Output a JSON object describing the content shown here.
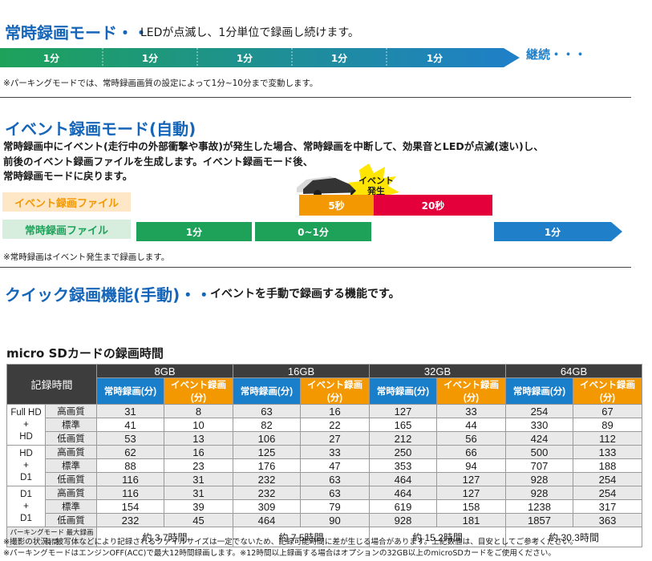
{
  "normal_mode": {
    "title": "常時録画モード・・",
    "desc": "LEDが点滅し、1分単位で録画し続けます。",
    "segments": [
      "1分",
      "1分",
      "1分",
      "1分",
      "1分"
    ],
    "continue_label": "継続・・・",
    "note": "※パーキングモードでは、常時録画画質の設定によって1分~10分まで変動します。"
  },
  "event_mode": {
    "title": "イベント録画モード(自動)",
    "desc_line1": "常時録画中にイベント(走行中の外部衝撃や事故)が発生した場合、常時録画を中断して、効果音とLEDが点滅(速い)し、",
    "desc_line2": "前後のイベント録画ファイルを生成します。イベント録画モード後、",
    "desc_line3": "常時録画モードに戻ります。",
    "event_file_label": "イベント録画ファイル",
    "normal_file_label": "常時録画ファイル",
    "event_burst": "イベント発生",
    "before_seg": "5秒",
    "after_seg": "20秒",
    "normal_segs": [
      "1分",
      "0~1分",
      "1分"
    ],
    "note": "※常時録画はイベント発生まで録画します。"
  },
  "quick_mode": {
    "title": "クイック録画機能(手動)・・",
    "desc": "イベントを手動で録画する機能です。"
  },
  "table": {
    "title": "micro SDカードの録画時間",
    "header_label": "記録時間",
    "capacities": [
      "8GB",
      "16GB",
      "32GB",
      "64GB"
    ],
    "col_normal": "常時録画(分)",
    "col_event": "イベント録画(分)",
    "groups": [
      {
        "name": [
          "Full HD",
          "+",
          "HD"
        ],
        "rows": [
          {
            "quality": "高画質",
            "values": [
              "31",
              "8",
              "63",
              "16",
              "127",
              "33",
              "254",
              "67"
            ]
          },
          {
            "quality": "標準",
            "values": [
              "41",
              "10",
              "82",
              "22",
              "165",
              "44",
              "330",
              "89"
            ]
          },
          {
            "quality": "低画質",
            "values": [
              "53",
              "13",
              "106",
              "27",
              "212",
              "56",
              "424",
              "112"
            ]
          }
        ]
      },
      {
        "name": [
          "HD",
          "+",
          "D1"
        ],
        "rows": [
          {
            "quality": "高画質",
            "values": [
              "62",
              "16",
              "125",
              "33",
              "250",
              "66",
              "500",
              "133"
            ]
          },
          {
            "quality": "標準",
            "values": [
              "88",
              "23",
              "176",
              "47",
              "353",
              "94",
              "707",
              "188"
            ]
          },
          {
            "quality": "低画質",
            "values": [
              "116",
              "31",
              "232",
              "63",
              "464",
              "127",
              "928",
              "254"
            ]
          }
        ]
      },
      {
        "name": [
          "D1",
          "+",
          "D1"
        ],
        "rows": [
          {
            "quality": "高画質",
            "values": [
              "116",
              "31",
              "232",
              "63",
              "464",
              "127",
              "928",
              "254"
            ]
          },
          {
            "quality": "標準",
            "values": [
              "154",
              "39",
              "309",
              "79",
              "619",
              "158",
              "1238",
              "317"
            ]
          },
          {
            "quality": "低画質",
            "values": [
              "232",
              "45",
              "464",
              "90",
              "928",
              "181",
              "1857",
              "363"
            ]
          }
        ]
      }
    ],
    "max_label": "パーキングモード 最大録画時間",
    "max_values": [
      "約 3.7時間",
      "約 7.5時間",
      "約 15.2時間",
      "約 30.3時間"
    ]
  },
  "footnote1": "※撮影の状況、被写体などにより記録されるファイルサイズは一定でないため、記録可能時間に差が生じる場合があります。上記数値は、目安としてご参考ください。",
  "footnote2": "※パーキングモードはエンジンOFF(ACC)で最大12時間録画します。※12時間以上録画する場合はオプションの32GB以上のmicroSDカードをご使用ください。",
  "colors": {
    "title_blue": "#1565b8",
    "green": "#1ea25a",
    "blue": "#1f7fc9",
    "orange": "#f39800",
    "red": "#e4003a"
  }
}
